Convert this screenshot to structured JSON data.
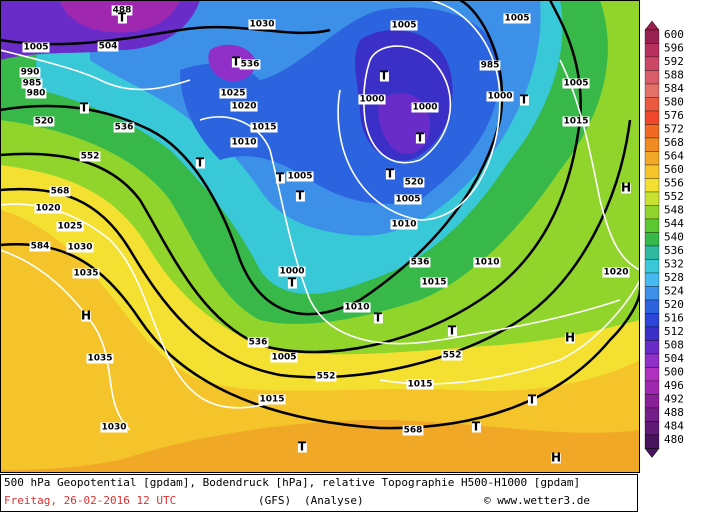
{
  "map": {
    "height_labels": [
      "488",
      "504",
      "536",
      "520",
      "536",
      "552",
      "568",
      "584",
      "520",
      "536",
      "536",
      "552",
      "552",
      "568"
    ],
    "isobar_labels": [
      "1030",
      "1005",
      "990",
      "985",
      "980",
      "1025",
      "1020",
      "1015",
      "1010",
      "1000",
      "1000",
      "1005",
      "1020",
      "1025",
      "1030",
      "1035",
      "1035",
      "1030",
      "1000",
      "1010",
      "1005",
      "1015",
      "1015",
      "1010",
      "1015",
      "1010",
      "1005",
      "1020",
      "1015",
      "1005",
      "1005",
      "1005",
      "985",
      "1000"
    ],
    "centers": [
      "H",
      "H",
      "H",
      "H",
      "T",
      "T",
      "T",
      "T",
      "T",
      "T",
      "T",
      "T",
      "T",
      "T",
      "T",
      "T",
      "T",
      "T",
      "T",
      "T"
    ]
  },
  "colorbar": {
    "levels": [
      600,
      596,
      592,
      588,
      584,
      580,
      576,
      572,
      568,
      564,
      560,
      556,
      552,
      548,
      544,
      540,
      536,
      532,
      528,
      524,
      520,
      516,
      512,
      508,
      504,
      500,
      496,
      492,
      488,
      484,
      480
    ],
    "colors": [
      "#9a2050",
      "#b8305c",
      "#cc4866",
      "#d85c6a",
      "#e4706a",
      "#ec5a40",
      "#f0482a",
      "#f06a24",
      "#f08c22",
      "#f0a826",
      "#f4c42a",
      "#f4e030",
      "#c8e030",
      "#90d42c",
      "#5cc830",
      "#38b848",
      "#30b8a0",
      "#38c8d8",
      "#48b8f0",
      "#3c90e8",
      "#2c64e0",
      "#2c44d8",
      "#3a30c8",
      "#6a2cc8",
      "#9030c8",
      "#b030c0",
      "#a028b0",
      "#8a2098",
      "#741e88",
      "#5e1a74",
      "#48145e"
    ]
  },
  "footer": {
    "line1": "500 hPa Geopotential [gpdam], Bodendruck [hPa], relative Topographie H500-H1000 [gpdam]",
    "date": "Freitag, 26-02-2016  12 UTC",
    "model": "(GFS)",
    "run": "(Analyse)",
    "credit": "© www.wetter3.de"
  }
}
